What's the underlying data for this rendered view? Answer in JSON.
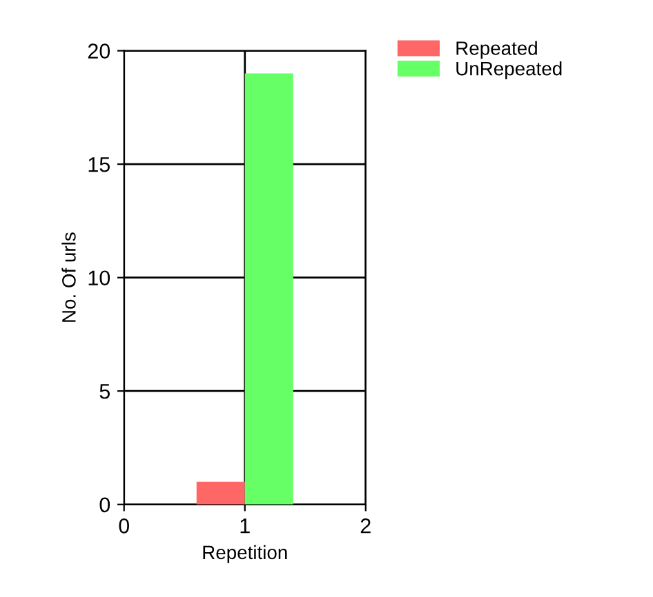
{
  "chart_data": {
    "type": "bar",
    "xlabel": "Repetition",
    "ylabel": "No. Of urls",
    "x": [
      1
    ],
    "series": [
      {
        "name": "Repeated",
        "color": "#ff6666",
        "values": [
          1
        ]
      },
      {
        "name": "UnRepeated",
        "color": "#66ff66",
        "values": [
          19
        ]
      }
    ],
    "xlim": [
      0,
      2
    ],
    "xticks": [
      0,
      1,
      2
    ],
    "ylim": [
      0,
      20
    ],
    "yticks": [
      0,
      5,
      10,
      15,
      20
    ],
    "grid": true,
    "legend": "top right"
  }
}
